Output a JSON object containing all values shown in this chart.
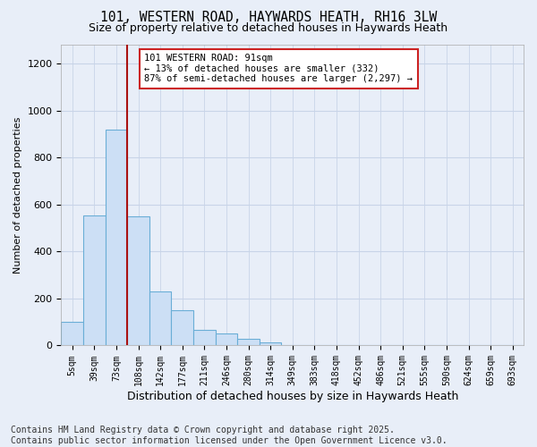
{
  "title": "101, WESTERN ROAD, HAYWARDS HEATH, RH16 3LW",
  "subtitle": "Size of property relative to detached houses in Haywards Heath",
  "xlabel": "Distribution of detached houses by size in Haywards Heath",
  "ylabel": "Number of detached properties",
  "bar_values": [
    100,
    555,
    920,
    550,
    230,
    150,
    65,
    50,
    30,
    15,
    0,
    0,
    0,
    0,
    0,
    0,
    0,
    0,
    0,
    0,
    0
  ],
  "bar_labels": [
    "5sqm",
    "39sqm",
    "73sqm",
    "108sqm",
    "142sqm",
    "177sqm",
    "211sqm",
    "246sqm",
    "280sqm",
    "314sqm",
    "349sqm",
    "383sqm",
    "418sqm",
    "452sqm",
    "486sqm",
    "521sqm",
    "555sqm",
    "590sqm",
    "624sqm",
    "659sqm",
    "693sqm"
  ],
  "bar_color": "#ccdff5",
  "bar_edge_color": "#6aaed6",
  "grid_color": "#c8d4e8",
  "bg_color": "#e8eef8",
  "vline_color": "#aa1111",
  "vline_x_index": 2.5,
  "annotation_text": "101 WESTERN ROAD: 91sqm\n← 13% of detached houses are smaller (332)\n87% of semi-detached houses are larger (2,297) →",
  "annotation_box_color": "#ffffff",
  "annotation_box_edge": "#cc2222",
  "ylim": [
    0,
    1280
  ],
  "yticks": [
    0,
    200,
    400,
    600,
    800,
    1000,
    1200
  ],
  "footnote": "Contains HM Land Registry data © Crown copyright and database right 2025.\nContains public sector information licensed under the Open Government Licence v3.0.",
  "title_fontsize": 10.5,
  "subtitle_fontsize": 9,
  "ylabel_fontsize": 8,
  "xlabel_fontsize": 9,
  "footnote_fontsize": 7,
  "tick_fontsize": 7
}
